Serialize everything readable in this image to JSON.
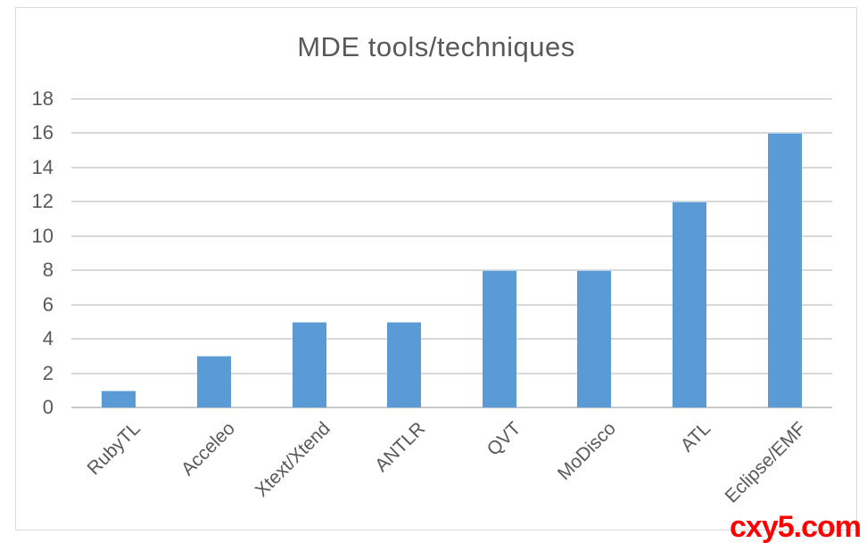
{
  "watermark": {
    "text": "cxy5.com",
    "color": "#FF0000"
  },
  "chart_data": {
    "type": "bar",
    "title": "MDE tools/techniques",
    "categories": [
      "RubyTL",
      "Acceleo",
      "Xtext/Xtend",
      "ANTLR",
      "QVT",
      "MoDisco",
      "ATL",
      "Eclipse/EMF"
    ],
    "values": [
      1,
      3,
      5,
      5,
      8,
      8,
      12,
      16
    ],
    "xlabel": "",
    "ylabel": "",
    "ylim": [
      0,
      18
    ],
    "ytick_step": 2,
    "ytick_labels": [
      "0",
      "2",
      "4",
      "6",
      "8",
      "10",
      "12",
      "14",
      "16",
      "18"
    ],
    "grid": true,
    "legend": false,
    "x_label_rotation_deg": -45,
    "colors": {
      "bar": "#5B9BD5",
      "gridline": "#D9D9D9",
      "axis_line": "#C9C9C9",
      "text": "#595959",
      "frame_border": "#D9D9D9",
      "background": "#FFFFFF"
    }
  }
}
